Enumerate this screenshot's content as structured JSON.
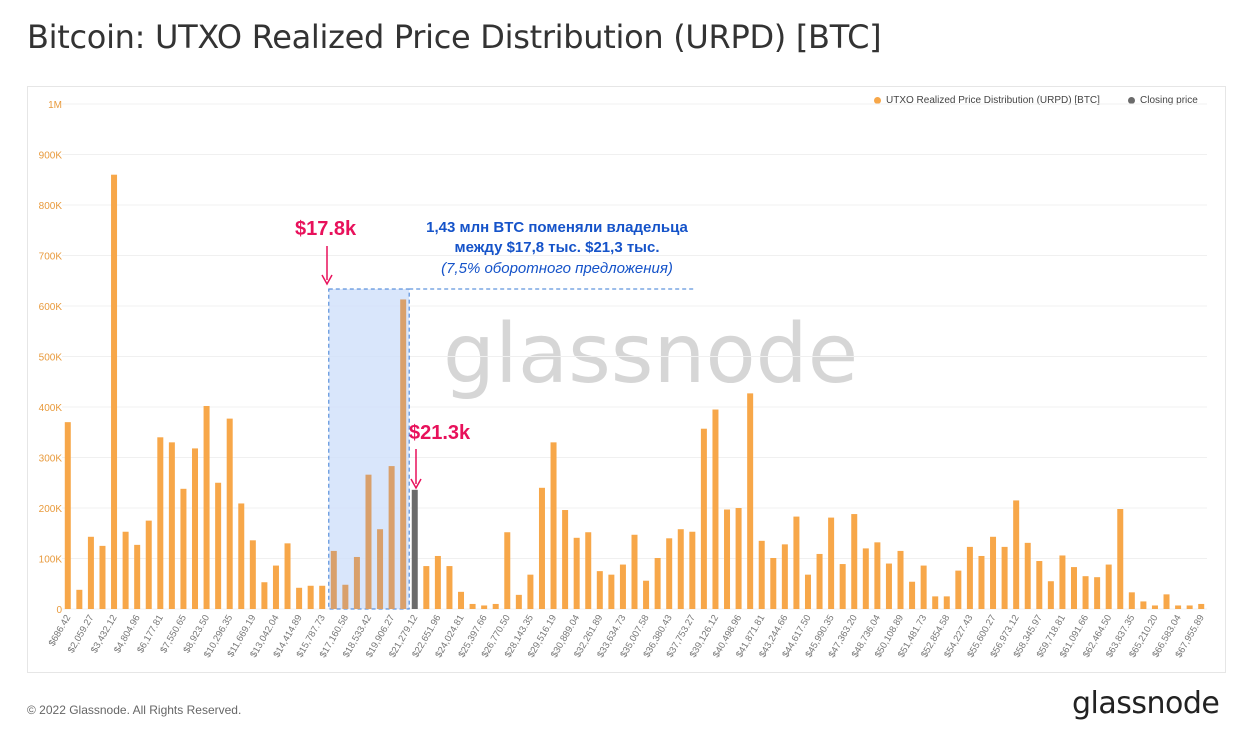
{
  "page": {
    "title": "Bitcoin: UTXO Realized Price Distribution (URPD) [BTC]",
    "copyright": "© 2022 Glassnode. All Rights Reserved.",
    "brand": "glassnode",
    "watermark": "glassnode"
  },
  "colors": {
    "bar": "#f7a749",
    "bar_highlight": "#d9a06b",
    "closing": "#6b6b6b",
    "shade": "#cfe0fa",
    "shade_border": "#3a7bd5",
    "accent": "#e8115b",
    "note": "#1553c9",
    "grid": "#f0f0f0",
    "tick": "#e89a3c"
  },
  "legend": [
    {
      "label": "UTXO Realized Price Distribution (URPD) [BTC]",
      "color": "#f7a749"
    },
    {
      "label": "Closing price",
      "color": "#6b6b6b"
    }
  ],
  "annotations": {
    "left_price": "$17.8k",
    "right_price": "$21.3k",
    "note_line1": "1,43 млн BTC поменяли владельца",
    "note_line2": "между $17,8 тыс. $21,3 тыс.",
    "note_line3": "(7,5% оборотного предложения)"
  },
  "chart_data": {
    "type": "bar",
    "title": "Bitcoin: UTXO Realized Price Distribution (URPD) [BTC]",
    "ylim": [
      0,
      1000000
    ],
    "y_ticks": [
      "0",
      "100K",
      "200K",
      "300K",
      "400K",
      "500K",
      "600K",
      "700K",
      "800K",
      "900K",
      "1M"
    ],
    "x_tick_labels": [
      "$686.42",
      "$2,059.27",
      "$3,432.12",
      "$4,804.96",
      "$6,177.81",
      "$7,550.65",
      "$8,923.50",
      "$10,296.35",
      "$11,669.19",
      "$13,042.04",
      "$14,414.89",
      "$15,787.73",
      "$17,160.58",
      "$18,533.42",
      "$19,906.27",
      "$21,279.12",
      "$22,651.96",
      "$24,024.81",
      "$25,397.66",
      "$26,770.50",
      "$28,143.35",
      "$29,516.19",
      "$30,889.04",
      "$32,261.89",
      "$33,634.73",
      "$35,007.58",
      "$36,380.43",
      "$37,753.27",
      "$39,126.12",
      "$40,498.96",
      "$41,871.81",
      "$43,244.66",
      "$44,617.50",
      "$45,990.35",
      "$47,363.20",
      "$48,736.04",
      "$50,108.89",
      "$51,481.73",
      "$52,854.58",
      "$54,227.43",
      "$55,600.27",
      "$56,973.12",
      "$58,345.97",
      "$59,718.81",
      "$61,091.66",
      "$62,464.50",
      "$63,837.35",
      "$65,210.20",
      "$66,583.04",
      "$67,955.89"
    ],
    "values": [
      370000,
      38000,
      143000,
      125000,
      860000,
      153000,
      127000,
      175000,
      340000,
      330000,
      238000,
      318000,
      402000,
      250000,
      377000,
      209000,
      136000,
      53000,
      86000,
      130000,
      42000,
      46000,
      46000,
      115000,
      48000,
      103000,
      266000,
      158000,
      283000,
      613000,
      236000,
      85000,
      105000,
      85000,
      34000,
      10000,
      7000,
      10000,
      152000,
      28000,
      68000,
      240000,
      330000,
      196000,
      141000,
      152000,
      75000,
      68000,
      88000,
      147000,
      56000,
      101000,
      140000,
      158000,
      153000,
      357000,
      395000,
      197000,
      200000,
      427000,
      135000,
      101000,
      128000,
      183000,
      68000,
      109000,
      181000,
      89000,
      188000,
      120000,
      132000,
      90000,
      115000,
      54000,
      86000,
      25000,
      25000,
      76000,
      123000,
      105000,
      143000,
      123000,
      215000,
      131000,
      95000,
      55000,
      106000,
      83000,
      65000,
      63000,
      88000,
      198000,
      33000,
      15000,
      7000,
      29000,
      7000,
      7000,
      10000
    ],
    "highlight_range": [
      23,
      29
    ],
    "closing_price_index": 30,
    "closing_price_label": "$21.3k"
  }
}
